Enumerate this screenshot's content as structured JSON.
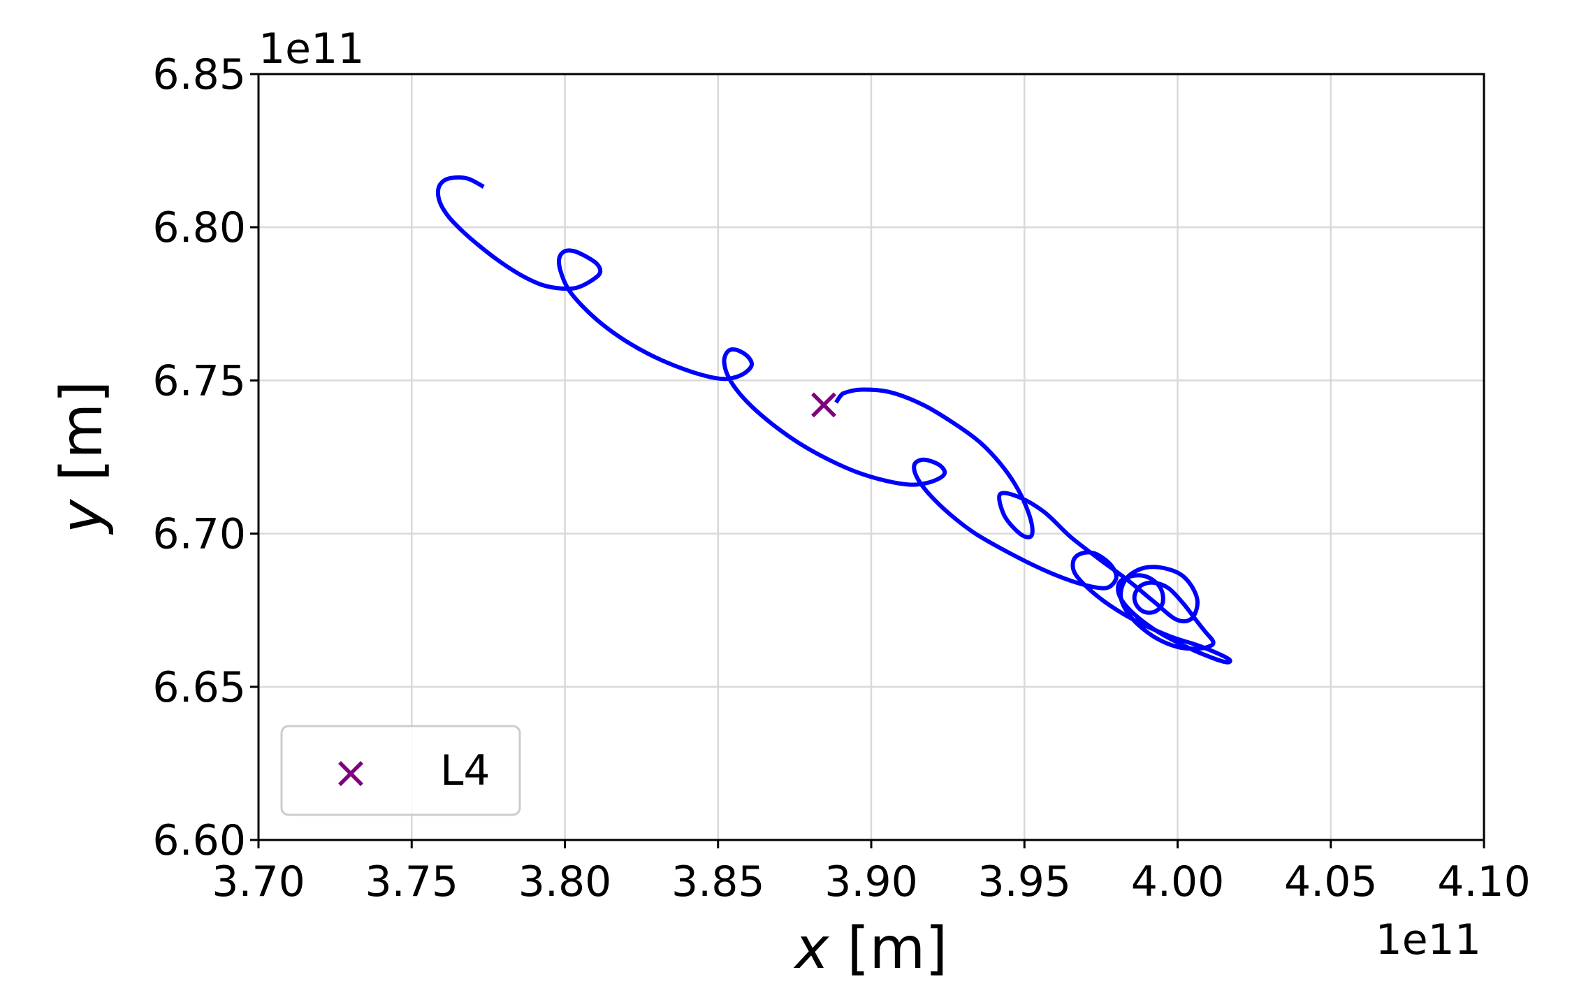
{
  "chart_data": {
    "type": "line",
    "title": "",
    "xlabel_var": "x",
    "xlabel_unit": " [m]",
    "ylabel_var": "y",
    "ylabel_unit": " [m]",
    "x_offset_label": "1e11",
    "y_offset_label": "1e11",
    "xlim": [
      3.7,
      4.1
    ],
    "ylim": [
      6.6,
      6.85
    ],
    "x_ticks": [
      "3.70",
      "3.75",
      "3.80",
      "3.85",
      "3.90",
      "3.95",
      "4.00",
      "4.05",
      "4.10"
    ],
    "y_ticks": [
      "6.60",
      "6.65",
      "6.70",
      "6.75",
      "6.80",
      "6.85"
    ],
    "grid": true,
    "legend_position": "lower-left",
    "series": [
      {
        "kind": "trajectory",
        "color": "#0000ff",
        "x": [
          3.7735,
          3.7685,
          3.7638,
          3.7605,
          3.7587,
          3.7592,
          3.762,
          3.7665,
          3.772,
          3.7785,
          3.7855,
          3.7925,
          3.799,
          3.804,
          3.809,
          3.8115,
          3.8105,
          3.8068,
          3.803,
          3.8,
          3.7982,
          3.7985,
          3.801,
          3.8055,
          3.812,
          3.82,
          3.829,
          3.8385,
          3.847,
          3.8525,
          3.857,
          3.86,
          3.861,
          3.8595,
          3.8565,
          3.854,
          3.8525,
          3.852,
          3.853,
          3.856,
          3.861,
          3.868,
          3.8765,
          3.886,
          3.8955,
          3.905,
          3.9125,
          3.918,
          3.9225,
          3.924,
          3.9225,
          3.919,
          3.916,
          3.914,
          3.915,
          3.919,
          3.9255,
          3.934,
          3.9445,
          3.9555,
          3.9655,
          3.973,
          3.9775,
          3.98,
          3.978,
          3.973,
          3.9685,
          3.966,
          3.9665,
          3.971,
          3.978,
          3.987,
          3.9975,
          4.0075,
          4.014,
          4.017,
          4.0162,
          4.012,
          4.004,
          3.9935,
          3.985,
          3.981,
          3.981,
          3.9845,
          3.989,
          3.993,
          3.995,
          3.995,
          3.9925,
          3.989,
          3.9865,
          3.986,
          3.988,
          3.992,
          3.997,
          4.002,
          4.006,
          4.009,
          4.0115,
          4.011,
          4.007,
          4.0,
          3.992,
          3.985,
          3.9815,
          3.983,
          3.988,
          3.994,
          4.0005,
          4.0045,
          4.0065,
          4.0045,
          3.9995,
          3.992,
          3.9835,
          3.974,
          3.965,
          3.9565,
          3.948,
          3.942,
          3.9435,
          3.9485,
          3.952,
          3.9525,
          3.9505,
          3.947,
          3.942,
          3.9355,
          3.927,
          3.917,
          3.906,
          3.8965,
          3.8915,
          3.89,
          3.8885
        ],
        "y": [
          6.8132,
          6.8158,
          6.8162,
          6.8152,
          6.8125,
          6.8082,
          6.8035,
          6.7988,
          6.794,
          6.789,
          6.7845,
          6.7812,
          6.78,
          6.7803,
          6.7828,
          6.7852,
          6.788,
          6.7905,
          6.7922,
          6.7922,
          6.79,
          6.786,
          6.78,
          6.7745,
          6.7685,
          6.7628,
          6.7578,
          6.7538,
          6.7512,
          6.7505,
          6.7515,
          6.7535,
          6.7555,
          6.758,
          6.7598,
          6.76,
          6.7585,
          6.756,
          6.752,
          6.747,
          6.7415,
          6.7355,
          6.7295,
          6.7242,
          6.72,
          6.7172,
          6.716,
          6.7165,
          6.7182,
          6.72,
          6.7222,
          6.7238,
          6.724,
          6.7222,
          6.7182,
          6.7128,
          6.7065,
          6.7,
          6.694,
          6.6885,
          6.6845,
          6.6825,
          6.6825,
          6.6858,
          6.69,
          6.6935,
          6.6935,
          6.6912,
          6.687,
          6.682,
          6.6765,
          6.6712,
          6.6665,
          6.6632,
          6.6605,
          6.6588,
          6.658,
          6.6592,
          6.6625,
          6.668,
          6.6745,
          6.6798,
          6.684,
          6.686,
          6.6862,
          6.684,
          6.6808,
          6.677,
          6.6745,
          6.6745,
          6.6768,
          6.68,
          6.683,
          6.684,
          6.6822,
          6.677,
          6.6718,
          6.668,
          6.665,
          6.6635,
          6.6625,
          6.663,
          6.6665,
          6.6725,
          6.679,
          6.685,
          6.6885,
          6.689,
          6.687,
          6.683,
          6.6775,
          6.6722,
          6.672,
          6.678,
          6.685,
          6.692,
          6.699,
          6.707,
          6.712,
          6.7128,
          6.7058,
          6.7,
          6.699,
          6.7025,
          6.709,
          6.716,
          6.723,
          6.7298,
          6.736,
          6.742,
          6.7462,
          6.747,
          6.746,
          6.745,
          6.7428
        ]
      },
      {
        "kind": "marker",
        "name": "L4",
        "marker": "x",
        "color": "#800080",
        "x": [
          3.8845
        ],
        "y": [
          6.742
        ]
      }
    ]
  }
}
